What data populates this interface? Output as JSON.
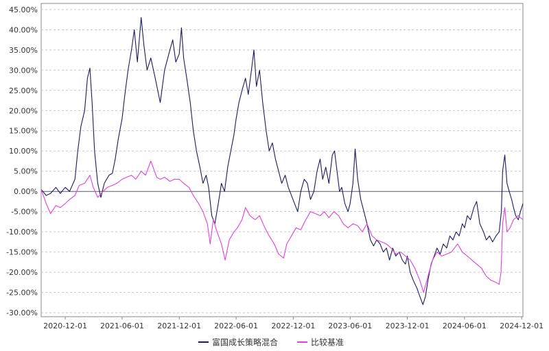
{
  "chart_data": {
    "type": "line",
    "title": "",
    "xlabel": "",
    "ylabel": "",
    "x_ticks": [
      "2020-12-01",
      "2021-06-01",
      "2021-12-01",
      "2022-06-01",
      "2022-12-01",
      "2023-06-01",
      "2023-12-01",
      "2024-06-01",
      "2024-12-01"
    ],
    "y_ticks": [
      "45.00%",
      "40.00%",
      "35.00%",
      "30.00%",
      "25.00%",
      "20.00%",
      "15.00%",
      "10.00%",
      "5.00%",
      "0.00%",
      "-5.00%",
      "-10.00%",
      "-15.00%",
      "-20.00%",
      "-25.00%",
      "-30.00%"
    ],
    "xlim": [
      "2020-09-15",
      "2024-12-05"
    ],
    "ylim": [
      -31,
      46.5
    ],
    "y_unit": "%",
    "grid": "horizontal dashed",
    "legend_position": "bottom-center",
    "series": [
      {
        "name": "富国成长策略混合",
        "color": "#1a1a5e",
        "points": [
          [
            "2020-09-15",
            0.5
          ],
          [
            "2020-10-01",
            -1.0
          ],
          [
            "2020-10-15",
            -0.5
          ],
          [
            "2020-11-01",
            1.0
          ],
          [
            "2020-11-15",
            -0.5
          ],
          [
            "2020-12-01",
            1.0
          ],
          [
            "2020-12-15",
            0.0
          ],
          [
            "2021-01-01",
            3.0
          ],
          [
            "2021-01-10",
            10.0
          ],
          [
            "2021-01-20",
            16.0
          ],
          [
            "2021-02-01",
            20.0
          ],
          [
            "2021-02-10",
            28.0
          ],
          [
            "2021-02-18",
            30.5
          ],
          [
            "2021-02-25",
            22.0
          ],
          [
            "2021-03-05",
            10.0
          ],
          [
            "2021-03-15",
            2.0
          ],
          [
            "2021-03-25",
            -1.5
          ],
          [
            "2021-04-05",
            2.0
          ],
          [
            "2021-04-20",
            4.0
          ],
          [
            "2021-05-01",
            4.5
          ],
          [
            "2021-05-10",
            8.0
          ],
          [
            "2021-05-20",
            13.0
          ],
          [
            "2021-06-01",
            18.0
          ],
          [
            "2021-06-10",
            24.0
          ],
          [
            "2021-06-20",
            30.0
          ],
          [
            "2021-07-01",
            35.0
          ],
          [
            "2021-07-10",
            40.0
          ],
          [
            "2021-07-20",
            32.0
          ],
          [
            "2021-08-01",
            43.0
          ],
          [
            "2021-08-10",
            36.0
          ],
          [
            "2021-08-20",
            30.0
          ],
          [
            "2021-09-01",
            33.0
          ],
          [
            "2021-09-15",
            28.0
          ],
          [
            "2021-10-01",
            22.0
          ],
          [
            "2021-10-15",
            30.0
          ],
          [
            "2021-11-01",
            35.0
          ],
          [
            "2021-11-10",
            37.5
          ],
          [
            "2021-11-20",
            32.0
          ],
          [
            "2021-12-01",
            34.0
          ],
          [
            "2021-12-08",
            40.5
          ],
          [
            "2021-12-15",
            33.0
          ],
          [
            "2021-12-25",
            28.0
          ],
          [
            "2022-01-05",
            22.0
          ],
          [
            "2022-01-15",
            15.0
          ],
          [
            "2022-01-25",
            10.0
          ],
          [
            "2022-02-05",
            6.0
          ],
          [
            "2022-02-15",
            2.0
          ],
          [
            "2022-02-25",
            4.0
          ],
          [
            "2022-03-05",
            1.0
          ],
          [
            "2022-03-15",
            -6.0
          ],
          [
            "2022-03-25",
            -8.0
          ],
          [
            "2022-04-05",
            -3.0
          ],
          [
            "2022-04-15",
            2.0
          ],
          [
            "2022-04-25",
            0.0
          ],
          [
            "2022-05-05",
            6.0
          ],
          [
            "2022-05-15",
            10.0
          ],
          [
            "2022-05-25",
            14.0
          ],
          [
            "2022-06-01",
            18.0
          ],
          [
            "2022-06-10",
            22.0
          ],
          [
            "2022-06-20",
            25.0
          ],
          [
            "2022-07-01",
            28.0
          ],
          [
            "2022-07-10",
            24.0
          ],
          [
            "2022-07-20",
            30.0
          ],
          [
            "2022-07-28",
            35.0
          ],
          [
            "2022-08-05",
            26.0
          ],
          [
            "2022-08-15",
            30.0
          ],
          [
            "2022-08-25",
            22.0
          ],
          [
            "2022-09-05",
            15.0
          ],
          [
            "2022-09-15",
            10.0
          ],
          [
            "2022-09-25",
            12.0
          ],
          [
            "2022-10-05",
            8.0
          ],
          [
            "2022-10-15",
            5.0
          ],
          [
            "2022-10-25",
            2.0
          ],
          [
            "2022-11-05",
            4.0
          ],
          [
            "2022-11-15",
            1.0
          ],
          [
            "2022-11-25",
            -1.0
          ],
          [
            "2022-12-05",
            -3.0
          ],
          [
            "2022-12-15",
            -5.0
          ],
          [
            "2022-12-25",
            0.0
          ],
          [
            "2023-01-05",
            3.0
          ],
          [
            "2023-01-15",
            2.0
          ],
          [
            "2023-01-25",
            -2.0
          ],
          [
            "2023-02-05",
            0.0
          ],
          [
            "2023-02-15",
            5.0
          ],
          [
            "2023-02-25",
            8.0
          ],
          [
            "2023-03-05",
            3.0
          ],
          [
            "2023-03-15",
            6.0
          ],
          [
            "2023-03-25",
            2.0
          ],
          [
            "2023-04-05",
            9.0
          ],
          [
            "2023-04-12",
            10.0
          ],
          [
            "2023-04-20",
            5.0
          ],
          [
            "2023-04-28",
            0.0
          ],
          [
            "2023-05-05",
            1.0
          ],
          [
            "2023-05-15",
            -3.0
          ],
          [
            "2023-05-25",
            -5.0
          ],
          [
            "2023-06-01",
            -3.0
          ],
          [
            "2023-06-10",
            2.0
          ],
          [
            "2023-06-17",
            10.5
          ],
          [
            "2023-06-25",
            3.0
          ],
          [
            "2023-07-05",
            -2.0
          ],
          [
            "2023-07-15",
            -5.0
          ],
          [
            "2023-07-25",
            -8.0
          ],
          [
            "2023-08-05",
            -12.0
          ],
          [
            "2023-08-15",
            -13.5
          ],
          [
            "2023-08-25",
            -12.0
          ],
          [
            "2023-09-05",
            -13.0
          ],
          [
            "2023-09-15",
            -15.0
          ],
          [
            "2023-09-25",
            -14.0
          ],
          [
            "2023-10-05",
            -17.0
          ],
          [
            "2023-10-15",
            -14.0
          ],
          [
            "2023-10-25",
            -16.0
          ],
          [
            "2023-11-05",
            -15.0
          ],
          [
            "2023-11-15",
            -17.0
          ],
          [
            "2023-11-25",
            -18.0
          ],
          [
            "2023-12-01",
            -16.0
          ],
          [
            "2023-12-10",
            -20.0
          ],
          [
            "2023-12-20",
            -22.0
          ],
          [
            "2024-01-01",
            -24.0
          ],
          [
            "2024-01-10",
            -26.0
          ],
          [
            "2024-01-20",
            -28.0
          ],
          [
            "2024-01-28",
            -26.0
          ],
          [
            "2024-02-05",
            -22.0
          ],
          [
            "2024-02-15",
            -18.0
          ],
          [
            "2024-02-25",
            -16.0
          ],
          [
            "2024-03-05",
            -14.0
          ],
          [
            "2024-03-15",
            -15.5
          ],
          [
            "2024-03-25",
            -13.0
          ],
          [
            "2024-04-05",
            -14.0
          ],
          [
            "2024-04-15",
            -11.0
          ],
          [
            "2024-04-25",
            -12.0
          ],
          [
            "2024-05-05",
            -10.0
          ],
          [
            "2024-05-15",
            -11.0
          ],
          [
            "2024-05-25",
            -8.0
          ],
          [
            "2024-06-01",
            -9.0
          ],
          [
            "2024-06-10",
            -6.0
          ],
          [
            "2024-06-20",
            -7.0
          ],
          [
            "2024-07-01",
            -4.0
          ],
          [
            "2024-07-10",
            -2.5
          ],
          [
            "2024-07-20",
            -8.0
          ],
          [
            "2024-08-01",
            -10.0
          ],
          [
            "2024-08-10",
            -12.0
          ],
          [
            "2024-08-20",
            -11.0
          ],
          [
            "2024-08-30",
            -12.5
          ],
          [
            "2024-09-10",
            -11.0
          ],
          [
            "2024-09-20",
            -10.0
          ],
          [
            "2024-09-27",
            -5.0
          ],
          [
            "2024-10-01",
            5.0
          ],
          [
            "2024-10-08",
            9.0
          ],
          [
            "2024-10-15",
            2.0
          ],
          [
            "2024-10-22",
            0.0
          ],
          [
            "2024-10-30",
            -2.0
          ],
          [
            "2024-11-05",
            -4.0
          ],
          [
            "2024-11-12",
            -6.0
          ],
          [
            "2024-11-20",
            -7.0
          ],
          [
            "2024-11-27",
            -5.0
          ],
          [
            "2024-12-05",
            -3.0
          ]
        ]
      },
      {
        "name": "比较基准",
        "color": "#e040e0",
        "points": [
          [
            "2020-09-15",
            0.5
          ],
          [
            "2020-10-01",
            -3.0
          ],
          [
            "2020-10-15",
            -5.5
          ],
          [
            "2020-11-01",
            -3.5
          ],
          [
            "2020-11-15",
            -4.0
          ],
          [
            "2020-12-01",
            -3.0
          ],
          [
            "2020-12-15",
            -2.0
          ],
          [
            "2021-01-01",
            -1.0
          ],
          [
            "2021-01-15",
            1.5
          ],
          [
            "2021-02-01",
            2.0
          ],
          [
            "2021-02-18",
            4.0
          ],
          [
            "2021-03-01",
            1.0
          ],
          [
            "2021-03-15",
            -1.5
          ],
          [
            "2021-04-01",
            0.0
          ],
          [
            "2021-04-15",
            1.0
          ],
          [
            "2021-05-01",
            1.5
          ],
          [
            "2021-05-15",
            2.0
          ],
          [
            "2021-06-01",
            3.0
          ],
          [
            "2021-06-15",
            3.5
          ],
          [
            "2021-07-01",
            4.0
          ],
          [
            "2021-07-15",
            3.0
          ],
          [
            "2021-08-01",
            5.0
          ],
          [
            "2021-08-15",
            4.0
          ],
          [
            "2021-09-01",
            7.5
          ],
          [
            "2021-09-08",
            6.0
          ],
          [
            "2021-09-20",
            3.5
          ],
          [
            "2021-10-01",
            3.0
          ],
          [
            "2021-10-15",
            3.5
          ],
          [
            "2021-11-01",
            2.5
          ],
          [
            "2021-11-15",
            3.0
          ],
          [
            "2021-12-01",
            3.0
          ],
          [
            "2021-12-15",
            2.0
          ],
          [
            "2022-01-01",
            1.0
          ],
          [
            "2022-01-15",
            -1.0
          ],
          [
            "2022-02-01",
            -3.0
          ],
          [
            "2022-02-15",
            -5.0
          ],
          [
            "2022-03-01",
            -8.0
          ],
          [
            "2022-03-10",
            -13.0
          ],
          [
            "2022-03-20",
            -7.0
          ],
          [
            "2022-04-01",
            -10.0
          ],
          [
            "2022-04-15",
            -13.0
          ],
          [
            "2022-04-27",
            -17.0
          ],
          [
            "2022-05-10",
            -12.0
          ],
          [
            "2022-05-25",
            -10.0
          ],
          [
            "2022-06-05",
            -9.0
          ],
          [
            "2022-06-20",
            -7.0
          ],
          [
            "2022-07-01",
            -4.0
          ],
          [
            "2022-07-15",
            -6.0
          ],
          [
            "2022-08-01",
            -7.0
          ],
          [
            "2022-08-15",
            -6.0
          ],
          [
            "2022-09-01",
            -9.0
          ],
          [
            "2022-09-15",
            -11.0
          ],
          [
            "2022-10-01",
            -13.0
          ],
          [
            "2022-10-15",
            -15.5
          ],
          [
            "2022-10-31",
            -16.5
          ],
          [
            "2022-11-10",
            -13.0
          ],
          [
            "2022-11-25",
            -11.0
          ],
          [
            "2022-12-10",
            -9.0
          ],
          [
            "2022-12-25",
            -9.5
          ],
          [
            "2023-01-10",
            -7.0
          ],
          [
            "2023-01-25",
            -5.0
          ],
          [
            "2023-02-10",
            -5.5
          ],
          [
            "2023-02-25",
            -6.0
          ],
          [
            "2023-03-10",
            -5.0
          ],
          [
            "2023-03-25",
            -6.5
          ],
          [
            "2023-04-10",
            -5.0
          ],
          [
            "2023-04-25",
            -6.0
          ],
          [
            "2023-05-10",
            -8.0
          ],
          [
            "2023-05-25",
            -9.0
          ],
          [
            "2023-06-10",
            -8.0
          ],
          [
            "2023-06-25",
            -8.5
          ],
          [
            "2023-07-10",
            -10.0
          ],
          [
            "2023-07-25",
            -8.0
          ],
          [
            "2023-08-10",
            -11.0
          ],
          [
            "2023-08-25",
            -12.0
          ],
          [
            "2023-09-10",
            -12.5
          ],
          [
            "2023-09-25",
            -13.0
          ],
          [
            "2023-10-10",
            -14.0
          ],
          [
            "2023-10-25",
            -15.5
          ],
          [
            "2023-11-10",
            -15.0
          ],
          [
            "2023-11-25",
            -16.0
          ],
          [
            "2023-12-10",
            -17.0
          ],
          [
            "2023-12-25",
            -19.0
          ],
          [
            "2024-01-10",
            -22.0
          ],
          [
            "2024-01-22",
            -25.0
          ],
          [
            "2024-02-05",
            -21.0
          ],
          [
            "2024-02-20",
            -17.0
          ],
          [
            "2024-03-05",
            -15.0
          ],
          [
            "2024-03-20",
            -16.0
          ],
          [
            "2024-04-05",
            -15.5
          ],
          [
            "2024-04-20",
            -15.0
          ],
          [
            "2024-05-10",
            -13.0
          ],
          [
            "2024-05-25",
            -15.0
          ],
          [
            "2024-06-10",
            -16.0
          ],
          [
            "2024-06-25",
            -17.0
          ],
          [
            "2024-07-10",
            -18.0
          ],
          [
            "2024-07-25",
            -19.0
          ],
          [
            "2024-08-10",
            -21.0
          ],
          [
            "2024-08-25",
            -22.0
          ],
          [
            "2024-09-10",
            -22.5
          ],
          [
            "2024-09-20",
            -23.0
          ],
          [
            "2024-09-26",
            -20.0
          ],
          [
            "2024-10-01",
            -8.0
          ],
          [
            "2024-10-08",
            -4.0
          ],
          [
            "2024-10-15",
            -10.0
          ],
          [
            "2024-10-25",
            -9.0
          ],
          [
            "2024-11-05",
            -7.0
          ],
          [
            "2024-11-20",
            -6.0
          ],
          [
            "2024-12-05",
            -7.0
          ]
        ]
      }
    ]
  }
}
